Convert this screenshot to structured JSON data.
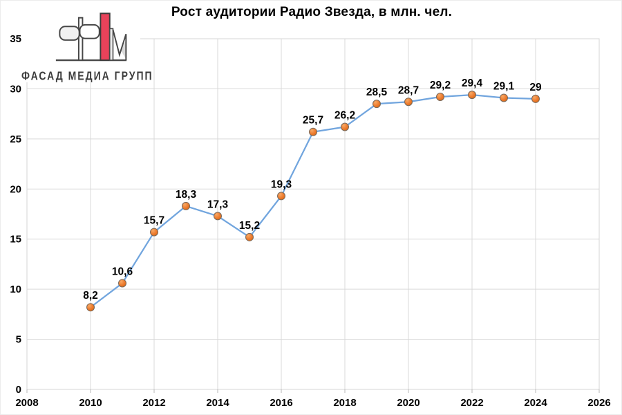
{
  "title": "Рост аудитории Радио Звезда, в млн. чел.",
  "logo": {
    "text": "ФАСАД МЕДИА ГРУПП",
    "red": "#e8425a",
    "outline": "#474747",
    "light_fill": "#f1f1f1"
  },
  "colors": {
    "background": "#ffffff",
    "grid": "#d9d9d9",
    "plot_border": "#d4d4d4",
    "tick": "#b7b7b7",
    "line": "#71a5de",
    "marker_fill": "#ed7d31",
    "marker_fill_light": "#f7a965",
    "marker_fill_dark": "#d9660f",
    "marker_stroke": "#77695c",
    "axis_text": "#000000",
    "label_text": "#000000"
  },
  "chart_data": {
    "type": "line",
    "title": "Рост аудитории Радио Звезда, в млн. чел.",
    "x": [
      2010,
      2011,
      2012,
      2013,
      2014,
      2015,
      2016,
      2017,
      2018,
      2019,
      2020,
      2021,
      2022,
      2023,
      2024
    ],
    "values": [
      8.2,
      10.6,
      15.7,
      18.3,
      17.3,
      15.2,
      19.3,
      25.7,
      26.2,
      28.5,
      28.7,
      29.2,
      29.4,
      29.1,
      29
    ],
    "point_labels": [
      "8,2",
      "10,6",
      "15,7",
      "18,3",
      "17,3",
      "15,2",
      "19,3",
      "25,7",
      "26,2",
      "28,5",
      "28,7",
      "29,2",
      "29,4",
      "29,1",
      "29"
    ],
    "xlabel": "",
    "ylabel": "",
    "xlim": [
      2008,
      2026
    ],
    "ylim": [
      0,
      35
    ],
    "x_ticks": [
      2008,
      2010,
      2012,
      2014,
      2016,
      2018,
      2020,
      2022,
      2024,
      2026
    ],
    "x_tick_labels": [
      "2008",
      "2010",
      "2012",
      "2014",
      "2016",
      "2018",
      "2020",
      "2022",
      "2024",
      "2026"
    ],
    "y_ticks": [
      0,
      5,
      10,
      15,
      20,
      25,
      30,
      35
    ],
    "y_tick_labels": [
      "0",
      "5",
      "10",
      "15",
      "20",
      "25",
      "30",
      "35"
    ],
    "grid": true,
    "legend": "none"
  }
}
